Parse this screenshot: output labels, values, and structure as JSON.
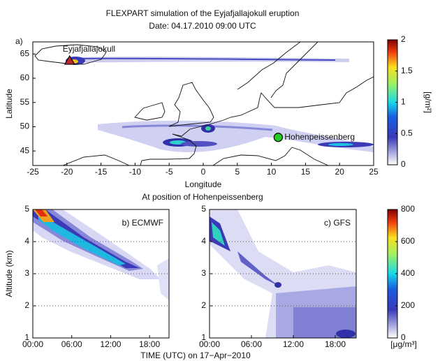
{
  "title": "FLEXPART simulation of the Eyjafjallajokull eruption",
  "subtitle": "Date: 04.17.2010 09:00 UTC",
  "section_title": "At position of Hohenpeissenberg",
  "shared_xlabel": "TIME (UTC) on 17−Apr−2010",
  "chart_data": [
    {
      "type": "map",
      "panel_label": "a)",
      "xlabel": "Longitude",
      "ylabel": "Latitude",
      "xlim": [
        -25,
        25
      ],
      "xticks": [
        -25,
        -20,
        -15,
        -10,
        -5,
        0,
        5,
        10,
        15,
        20,
        25
      ],
      "ylim": [
        42,
        67.5
      ],
      "yticks": [
        45,
        50,
        55,
        60,
        65
      ],
      "points": [
        {
          "name": "Eyjafjallajokull",
          "x": -19.6,
          "y": 63.6,
          "color": "#c0282d",
          "marker": "triangle"
        },
        {
          "name": "Hohenpeissenberg",
          "x": 11,
          "y": 47.8,
          "color": "#22cc22",
          "marker": "circle"
        }
      ],
      "colorbar": {
        "lim": [
          0,
          2
        ],
        "ticks": [
          0,
          0.5,
          1,
          1.5,
          2
        ],
        "label": "[g/m²]"
      }
    },
    {
      "type": "contour",
      "title": "b) ECMWF",
      "ylabel": "Altitude (km)",
      "xlim": [
        0,
        21
      ],
      "xticks": [
        {
          "value": 0,
          "label": "00:00"
        },
        {
          "value": 6,
          "label": "06:00"
        },
        {
          "value": 12,
          "label": "12:00"
        },
        {
          "value": 18,
          "label": "18:00"
        }
      ],
      "ylim": [
        1,
        5
      ],
      "yticks": [
        1,
        2,
        3,
        4,
        5
      ],
      "grid": true
    },
    {
      "type": "contour",
      "title": "c) GFS",
      "xlim": [
        0,
        21
      ],
      "xticks": [
        {
          "value": 0,
          "label": "00:00"
        },
        {
          "value": 6,
          "label": "06:00"
        },
        {
          "value": 12,
          "label": "12:00"
        },
        {
          "value": 18,
          "label": "18:00"
        }
      ],
      "ylim": [
        1,
        5
      ],
      "yticks": [
        1,
        2,
        3,
        4,
        5
      ],
      "grid": true,
      "colorbar": {
        "lim": [
          0,
          800
        ],
        "ticks": [
          0,
          200,
          400,
          600,
          800
        ],
        "label": "[μg/m³]"
      }
    }
  ]
}
